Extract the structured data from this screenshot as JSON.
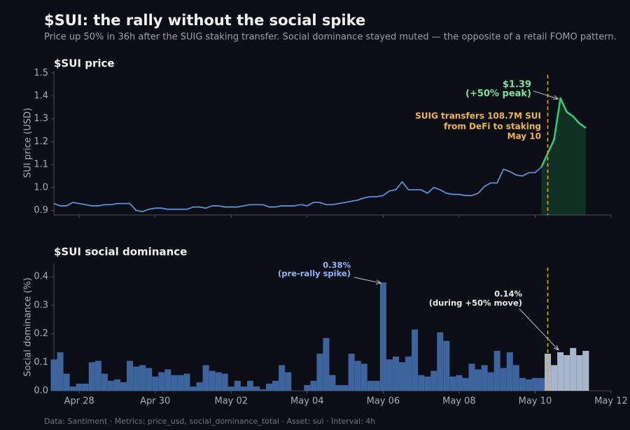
{
  "title": "$SUI: the rally without the social spike",
  "subtitle": "Price up 50% in 36h after the SUIG staking transfer. Social dominance stayed muted — the opposite of a retail FOMO pattern.",
  "footer": "Data: Santiment  ·  Metrics: price_usd, social_dominance_total  ·  Asset: sui  ·  Interval: 4h",
  "chart_data": [
    {
      "type": "line",
      "title": "$SUI price",
      "ylabel": "SUI price (USD)",
      "ylim": [
        0.88,
        1.51
      ],
      "yticks": [
        0.9,
        {
          "value": 1,
          "label": "1.0"
        },
        1.1,
        1.2,
        1.3,
        1.4,
        1.5
      ],
      "series": [
        {
          "color": "#5b8fd6",
          "values": [
            0.93,
            0.92,
            0.92,
            0.935,
            0.93,
            0.925,
            0.92,
            0.92,
            0.925,
            0.925,
            0.93,
            0.93,
            0.93,
            0.9,
            0.895,
            0.905,
            0.91,
            0.91,
            0.905,
            0.905,
            0.905,
            0.905,
            0.915,
            0.915,
            0.91,
            0.92,
            0.92,
            0.915,
            0.915,
            0.915,
            0.92,
            0.925,
            0.925,
            0.925,
            0.915,
            0.915,
            0.92,
            0.92,
            0.92,
            0.925,
            0.92,
            0.935,
            0.935,
            0.925,
            0.925,
            0.93,
            0.935,
            0.94,
            0.945,
            0.955,
            0.96,
            0.96,
            0.965,
            0.985,
            0.99,
            1.025,
            0.99,
            0.99,
            0.99,
            0.975,
            1.0,
            0.99,
            0.975,
            0.97,
            0.97,
            0.965,
            0.965,
            0.975,
            1.005,
            1.02,
            1.02,
            1.08,
            1.07,
            1.055,
            1.05,
            1.065,
            1.065,
            1.09,
            null,
            null,
            null,
            null,
            null,
            null,
            null,
            null,
            null,
            null,
            null
          ]
        },
        {
          "color": "#2ecc71",
          "values": [
            null,
            null,
            null,
            null,
            null,
            null,
            null,
            null,
            null,
            null,
            null,
            null,
            null,
            null,
            null,
            null,
            null,
            null,
            null,
            null,
            null,
            null,
            null,
            null,
            null,
            null,
            null,
            null,
            null,
            null,
            null,
            null,
            null,
            null,
            null,
            null,
            null,
            null,
            null,
            null,
            null,
            null,
            null,
            null,
            null,
            null,
            null,
            null,
            null,
            null,
            null,
            null,
            null,
            null,
            null,
            null,
            null,
            null,
            null,
            null,
            null,
            null,
            null,
            null,
            null,
            null,
            null,
            null,
            null,
            null,
            null,
            null,
            null,
            null,
            null,
            null,
            null,
            1.09,
            1.15,
            1.21,
            1.39,
            1.33,
            1.31,
            1.28,
            1.26,
            null,
            null,
            null,
            null
          ]
        }
      ],
      "annotations": [
        {
          "text": "$1.39",
          "color": "#7ee2a0"
        },
        {
          "text": "(+50% peak)",
          "color": "#7ee2a0"
        },
        {
          "text": "SUIG transfers 108.7M SUI",
          "color": "#f0b44c"
        },
        {
          "text": "from DeFi to staking",
          "color": "#f0b44c"
        },
        {
          "text": "May 10",
          "color": "#f0b44c"
        }
      ]
    },
    {
      "type": "bar",
      "title": "$SUI social dominance",
      "ylabel": "Social dominance (%)",
      "ylim": [
        0,
        0.447
      ],
      "yticks": [
        {
          "value": 0,
          "label": "0.0"
        },
        0.1,
        0.2,
        0.3,
        0.4
      ],
      "categories": [
        null,
        null,
        null,
        null,
        "Apr 28",
        null,
        null,
        null,
        null,
        null,
        null,
        null,
        null,
        null,
        null,
        null,
        "Apr 30",
        null,
        null,
        null,
        null,
        null,
        null,
        null,
        null,
        null,
        null,
        null,
        "May 02",
        null,
        null,
        null,
        null,
        null,
        null,
        null,
        null,
        null,
        null,
        null,
        "May 04",
        null,
        null,
        null,
        null,
        null,
        null,
        null,
        null,
        null,
        null,
        null,
        "May 06",
        null,
        null,
        null,
        null,
        null,
        null,
        null,
        null,
        null,
        null,
        null,
        "May 08",
        null,
        null,
        null,
        null,
        null,
        null,
        null,
        null,
        null,
        null,
        null,
        "May 10",
        null,
        null,
        null,
        null,
        null,
        null,
        null,
        null,
        null,
        null,
        null,
        "May 12"
      ],
      "series": [
        {
          "color": "#3d649c",
          "values": [
            0.11,
            0.135,
            0.06,
            0.015,
            0.025,
            0.025,
            0.1,
            0.105,
            0.06,
            0.035,
            0.04,
            0.03,
            0.105,
            0.085,
            0.09,
            0.08,
            0.05,
            0.065,
            0.075,
            0.055,
            0.055,
            0.06,
            0.015,
            0.03,
            0.09,
            0.07,
            0.065,
            0.06,
            0.015,
            0.035,
            0.015,
            0.035,
            0.015,
            0.005,
            0.025,
            0.035,
            0.09,
            0.065,
            0,
            0,
            0.02,
            0.035,
            0.13,
            0.185,
            0.055,
            0.02,
            0.02,
            0.13,
            0.105,
            0.095,
            0.035,
            0.035,
            0.38,
            0.11,
            0.12,
            0.1,
            0.12,
            0.215,
            0.055,
            0.05,
            0.07,
            0.205,
            0.175,
            0.05,
            0.055,
            0.045,
            0.095,
            0.075,
            0.09,
            0.065,
            0.14,
            0.08,
            0.135,
            0.09,
            0.045,
            0.04,
            0.045,
            0.045,
            null,
            null,
            null,
            null,
            null,
            null,
            null,
            null,
            null,
            null,
            null
          ]
        },
        {
          "color": "#a7b6ca",
          "values": [
            null,
            null,
            null,
            null,
            null,
            null,
            null,
            null,
            null,
            null,
            null,
            null,
            null,
            null,
            null,
            null,
            null,
            null,
            null,
            null,
            null,
            null,
            null,
            null,
            null,
            null,
            null,
            null,
            null,
            null,
            null,
            null,
            null,
            null,
            null,
            null,
            null,
            null,
            null,
            null,
            null,
            null,
            null,
            null,
            null,
            null,
            null,
            null,
            null,
            null,
            null,
            null,
            null,
            null,
            null,
            null,
            null,
            null,
            null,
            null,
            null,
            null,
            null,
            null,
            null,
            null,
            null,
            null,
            null,
            null,
            null,
            null,
            null,
            null,
            null,
            null,
            null,
            null,
            0.13,
            0.09,
            0.135,
            0.125,
            0.15,
            0.125,
            0.14,
            null,
            null,
            null,
            null
          ]
        }
      ],
      "annotations": [
        {
          "text": "0.38%",
          "color": "#8fb4f0"
        },
        {
          "text": "(pre-rally spike)",
          "color": "#8fb4f0"
        },
        {
          "text": "0.14%",
          "color": "#e8e8e8"
        },
        {
          "text": "(during +50% move)",
          "color": "#e8e8e8"
        }
      ]
    }
  ]
}
